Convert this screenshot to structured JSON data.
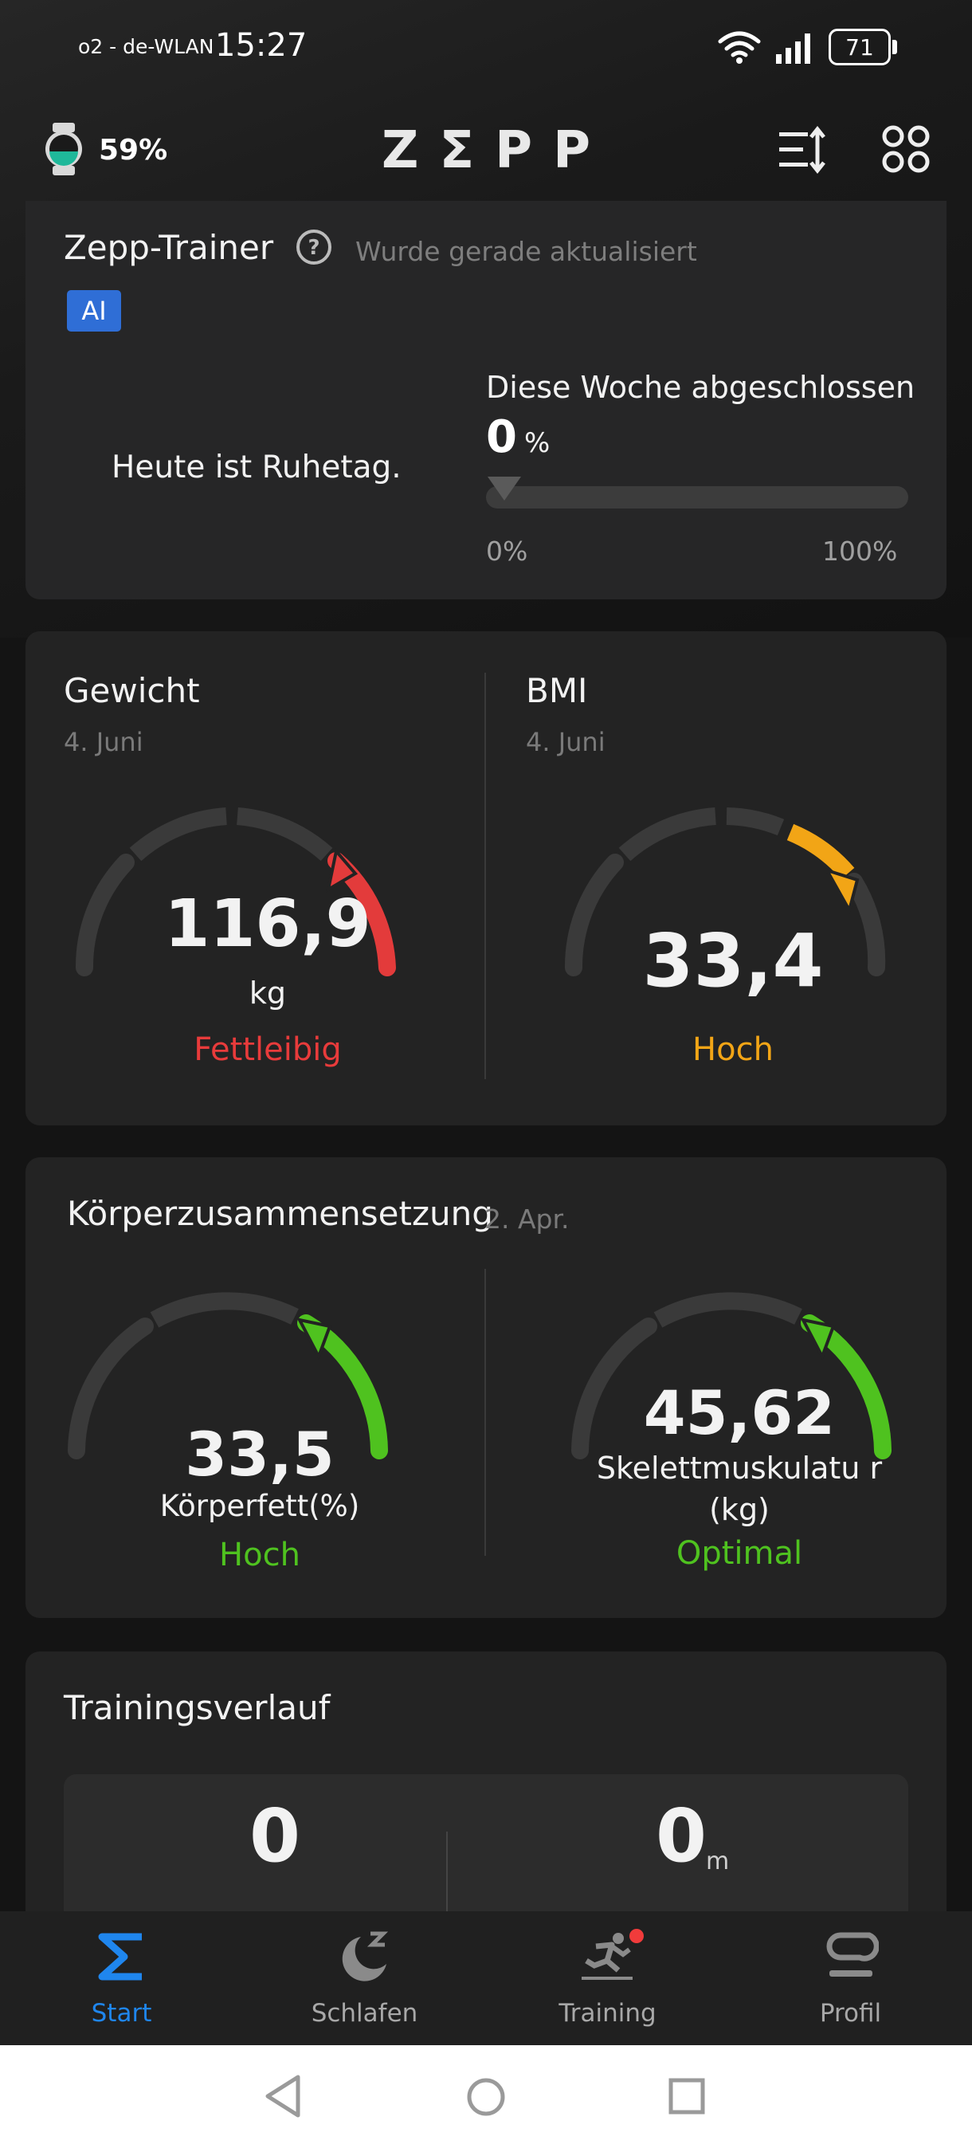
{
  "status_bar": {
    "carrier": "o2 - de-WLAN",
    "time": "15:27",
    "battery": "71"
  },
  "header": {
    "watch_battery": "59%",
    "brand": "ZΣPP"
  },
  "trainer": {
    "title": "Zepp-Trainer",
    "updated": "Wurde gerade aktualisiert",
    "badge": "AI",
    "rest_day": "Heute ist Ruhetag.",
    "week_label": "Diese Woche abgeschlossen",
    "week_value": "0",
    "week_unit": "%",
    "week_progress": 0,
    "scale_min": "0%",
    "scale_max": "100%"
  },
  "weight": {
    "title": "Gewicht",
    "date": "4. Juni",
    "value": "116,9",
    "unit": "kg",
    "status": "Fettleibig",
    "status_color": "#e83b3b"
  },
  "bmi": {
    "title": "BMI",
    "date": "4. Juni",
    "value": "33,4",
    "status": "Hoch",
    "status_color": "#f2a516"
  },
  "body": {
    "title": "Körperzusammensetzung",
    "date": "2. Apr.",
    "fat_value": "33,5",
    "fat_label": "Körperfett(%)",
    "fat_status": "Hoch",
    "muscle_value": "45,62",
    "muscle_label": "Skelettmuskulatu r (kg)",
    "muscle_status": "Optimal",
    "status_color": "#4fc21f"
  },
  "training": {
    "title": "Trainingsverlauf",
    "value_1": "0",
    "value_2": "0",
    "unit_2": "m"
  },
  "tabs": [
    {
      "label": "Start",
      "icon": "sigma-icon",
      "active": true
    },
    {
      "label": "Schlafen",
      "icon": "moon-sleep-icon",
      "active": false
    },
    {
      "label": "Training",
      "icon": "running-icon",
      "active": false
    },
    {
      "label": "Profil",
      "icon": "profile-icon",
      "active": false
    }
  ],
  "colors": {
    "accent": "#1f86ee",
    "red": "#e83b3b",
    "orange": "#f2a516",
    "green": "#4fc21f"
  }
}
